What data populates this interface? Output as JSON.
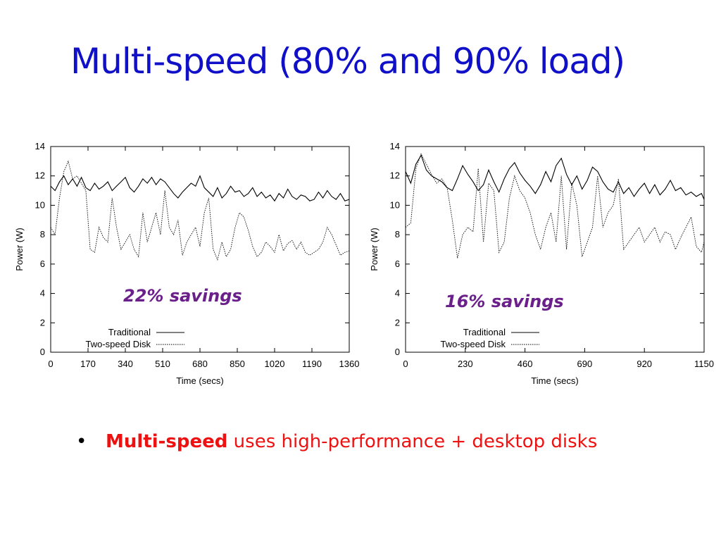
{
  "slide": {
    "title": "Multi-speed (80% and 90% load)",
    "title_color": "#1010c8",
    "bullet": {
      "symbol": "•",
      "strong": "Multi-speed",
      "rest": " uses high-performance + desktop disks",
      "color": "#ee1111"
    }
  },
  "annotation_color": "#6b1f8a",
  "chart_data": [
    {
      "type": "line",
      "title": "",
      "xlabel": "Time (secs)",
      "ylabel": "Power (W)",
      "xlim": [
        0,
        1360
      ],
      "ylim": [
        0,
        14
      ],
      "xticks": [
        0,
        170,
        340,
        510,
        680,
        850,
        1020,
        1190,
        1360
      ],
      "yticks": [
        0,
        2,
        4,
        6,
        8,
        10,
        12,
        14
      ],
      "grid": false,
      "legend_position": "bottom-left",
      "annotation": "22% savings",
      "series": [
        {
          "name": "Traditional",
          "style": "solid",
          "x": [
            0,
            20,
            40,
            60,
            80,
            100,
            120,
            140,
            160,
            180,
            200,
            220,
            240,
            260,
            280,
            300,
            320,
            340,
            360,
            380,
            400,
            420,
            440,
            460,
            480,
            500,
            520,
            540,
            560,
            580,
            600,
            620,
            640,
            660,
            680,
            700,
            720,
            740,
            760,
            780,
            800,
            820,
            840,
            860,
            880,
            900,
            920,
            940,
            960,
            980,
            1000,
            1020,
            1040,
            1060,
            1080,
            1100,
            1120,
            1140,
            1160,
            1180,
            1200,
            1220,
            1240,
            1260,
            1280,
            1300,
            1320,
            1340,
            1360
          ],
          "y": [
            11.3,
            11.0,
            11.6,
            12.0,
            11.4,
            11.8,
            11.3,
            11.9,
            11.2,
            11.0,
            11.5,
            11.1,
            11.3,
            11.6,
            11.0,
            11.3,
            11.6,
            11.9,
            11.2,
            10.9,
            11.3,
            11.8,
            11.5,
            11.9,
            11.4,
            11.8,
            11.6,
            11.2,
            10.8,
            10.5,
            10.9,
            11.2,
            11.5,
            11.3,
            12.0,
            11.2,
            10.9,
            10.6,
            11.2,
            10.5,
            10.8,
            11.3,
            10.9,
            11.0,
            10.6,
            10.8,
            11.2,
            10.6,
            10.9,
            10.5,
            10.7,
            10.3,
            10.8,
            10.5,
            11.1,
            10.6,
            10.4,
            10.7,
            10.6,
            10.3,
            10.4,
            10.9,
            10.5,
            11.0,
            10.6,
            10.4,
            10.8,
            10.3,
            10.4
          ]
        },
        {
          "name": "Two-speed Disk",
          "style": "dotted",
          "x": [
            0,
            20,
            40,
            60,
            80,
            100,
            120,
            140,
            160,
            180,
            200,
            220,
            240,
            260,
            280,
            300,
            320,
            340,
            360,
            380,
            400,
            420,
            440,
            460,
            480,
            500,
            520,
            540,
            560,
            580,
            600,
            620,
            640,
            660,
            680,
            700,
            720,
            740,
            760,
            780,
            800,
            820,
            840,
            860,
            880,
            900,
            920,
            940,
            960,
            980,
            1000,
            1020,
            1040,
            1060,
            1080,
            1100,
            1120,
            1140,
            1160,
            1180,
            1200,
            1220,
            1240,
            1260,
            1280,
            1300,
            1320,
            1340,
            1360
          ],
          "y": [
            8.5,
            8.0,
            10.5,
            12.3,
            13.0,
            11.8,
            12.0,
            11.5,
            11.0,
            7.0,
            6.8,
            8.5,
            7.8,
            7.5,
            10.5,
            8.5,
            7.0,
            7.5,
            8.0,
            7.0,
            6.5,
            9.5,
            7.5,
            8.5,
            9.5,
            8.0,
            11.0,
            8.5,
            8.0,
            9.0,
            6.6,
            7.5,
            8.0,
            8.5,
            7.2,
            9.5,
            10.5,
            7.0,
            6.3,
            7.5,
            6.5,
            7.0,
            8.5,
            9.5,
            9.2,
            8.3,
            7.2,
            6.5,
            6.8,
            7.5,
            7.2,
            6.8,
            8.0,
            6.9,
            7.4,
            7.6,
            7.0,
            7.5,
            6.8,
            6.6,
            6.8,
            7.0,
            7.5,
            8.5,
            8.0,
            7.3,
            6.6,
            6.8,
            6.9
          ]
        }
      ]
    },
    {
      "type": "line",
      "title": "",
      "xlabel": "Time (secs)",
      "ylabel": "Power (W)",
      "xlim": [
        0,
        1150
      ],
      "ylim": [
        0,
        14
      ],
      "xticks": [
        0,
        230,
        460,
        690,
        920,
        1150
      ],
      "yticks": [
        0,
        2,
        4,
        6,
        8,
        10,
        12,
        14
      ],
      "grid": false,
      "legend_position": "bottom-left",
      "annotation": "16% savings",
      "series": [
        {
          "name": "Traditional",
          "style": "solid",
          "x": [
            0,
            20,
            40,
            60,
            80,
            100,
            120,
            140,
            160,
            180,
            200,
            220,
            240,
            260,
            280,
            300,
            320,
            340,
            360,
            380,
            400,
            420,
            440,
            460,
            480,
            500,
            520,
            540,
            560,
            580,
            600,
            620,
            640,
            660,
            680,
            700,
            720,
            740,
            760,
            780,
            800,
            820,
            840,
            860,
            880,
            900,
            920,
            940,
            960,
            980,
            1000,
            1020,
            1040,
            1060,
            1080,
            1100,
            1120,
            1140,
            1150
          ],
          "y": [
            12.3,
            11.5,
            12.8,
            13.4,
            12.4,
            12.0,
            11.8,
            11.6,
            11.2,
            11.0,
            11.8,
            12.7,
            12.1,
            11.6,
            11.0,
            11.4,
            12.4,
            11.6,
            10.9,
            11.8,
            12.5,
            12.9,
            12.2,
            11.7,
            11.3,
            10.8,
            11.4,
            12.3,
            11.6,
            12.7,
            13.2,
            12.1,
            11.4,
            12.0,
            11.1,
            11.7,
            12.6,
            12.3,
            11.6,
            11.1,
            10.9,
            11.6,
            10.8,
            11.2,
            10.6,
            11.1,
            11.5,
            10.8,
            11.4,
            10.7,
            11.1,
            11.7,
            11.0,
            11.2,
            10.7,
            10.9,
            10.6,
            10.8,
            10.4
          ]
        },
        {
          "name": "Two-speed Disk",
          "style": "dotted",
          "x": [
            0,
            20,
            40,
            60,
            80,
            100,
            120,
            140,
            160,
            180,
            200,
            220,
            240,
            260,
            280,
            300,
            320,
            340,
            360,
            380,
            400,
            420,
            440,
            460,
            480,
            500,
            520,
            540,
            560,
            580,
            600,
            620,
            640,
            660,
            680,
            700,
            720,
            740,
            760,
            780,
            800,
            820,
            840,
            860,
            880,
            900,
            920,
            940,
            960,
            980,
            1000,
            1020,
            1040,
            1060,
            1080,
            1100,
            1120,
            1140,
            1150
          ],
          "y": [
            8.5,
            8.8,
            12.5,
            13.5,
            12.8,
            12.1,
            11.5,
            11.8,
            11.2,
            9.0,
            6.4,
            8.0,
            8.5,
            8.2,
            12.5,
            7.5,
            11.5,
            11.0,
            6.8,
            7.5,
            10.5,
            12.0,
            11.0,
            10.5,
            9.5,
            8.0,
            7.0,
            8.5,
            9.5,
            7.5,
            12.0,
            7.0,
            11.5,
            10.0,
            6.5,
            7.5,
            8.5,
            12.0,
            8.5,
            9.5,
            10.0,
            11.8,
            7.0,
            7.5,
            8.0,
            8.5,
            7.5,
            8.0,
            8.5,
            7.5,
            8.2,
            8.0,
            7.0,
            7.8,
            8.5,
            9.2,
            7.2,
            6.8,
            7.5
          ]
        }
      ]
    }
  ]
}
